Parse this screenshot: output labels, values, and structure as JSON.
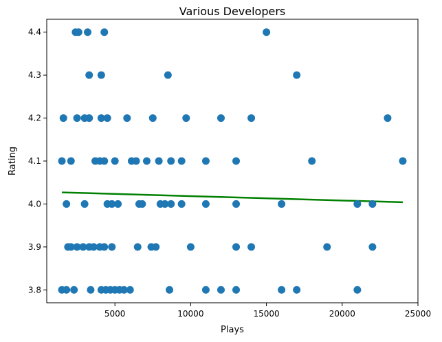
{
  "chart_data": {
    "type": "scatter",
    "title": "Various Developers",
    "xlabel": "Plays",
    "ylabel": "Rating",
    "xlim": [
      500,
      25000
    ],
    "ylim": [
      3.77,
      4.43
    ],
    "xticks": [
      5000,
      10000,
      15000,
      20000,
      25000
    ],
    "xtick_labels": [
      "5000",
      "10000",
      "15000",
      "20000",
      "25000"
    ],
    "yticks": [
      3.8,
      3.9,
      4.0,
      4.1,
      4.2,
      4.3,
      4.4
    ],
    "ytick_labels": [
      "3.8",
      "3.9",
      "4.0",
      "4.1",
      "4.2",
      "4.3",
      "4.4"
    ],
    "grid": false,
    "point_color": "#1f77b4",
    "trend_color": "#008000",
    "points": [
      {
        "x": 2400,
        "y": 4.4
      },
      {
        "x": 2600,
        "y": 4.4
      },
      {
        "x": 3200,
        "y": 4.4
      },
      {
        "x": 4300,
        "y": 4.4
      },
      {
        "x": 15000,
        "y": 4.4
      },
      {
        "x": 3300,
        "y": 4.3
      },
      {
        "x": 4100,
        "y": 4.3
      },
      {
        "x": 8500,
        "y": 4.3
      },
      {
        "x": 17000,
        "y": 4.3
      },
      {
        "x": 1600,
        "y": 4.2
      },
      {
        "x": 2500,
        "y": 4.2
      },
      {
        "x": 3000,
        "y": 4.2
      },
      {
        "x": 3300,
        "y": 4.2
      },
      {
        "x": 4100,
        "y": 4.2
      },
      {
        "x": 4500,
        "y": 4.2
      },
      {
        "x": 5800,
        "y": 4.2
      },
      {
        "x": 7500,
        "y": 4.2
      },
      {
        "x": 9700,
        "y": 4.2
      },
      {
        "x": 12000,
        "y": 4.2
      },
      {
        "x": 14000,
        "y": 4.2
      },
      {
        "x": 23000,
        "y": 4.2
      },
      {
        "x": 1500,
        "y": 4.1
      },
      {
        "x": 2100,
        "y": 4.1
      },
      {
        "x": 3700,
        "y": 4.1
      },
      {
        "x": 4000,
        "y": 4.1
      },
      {
        "x": 4300,
        "y": 4.1
      },
      {
        "x": 5000,
        "y": 4.1
      },
      {
        "x": 6100,
        "y": 4.1
      },
      {
        "x": 6400,
        "y": 4.1
      },
      {
        "x": 7100,
        "y": 4.1
      },
      {
        "x": 7900,
        "y": 4.1
      },
      {
        "x": 8700,
        "y": 4.1
      },
      {
        "x": 9400,
        "y": 4.1
      },
      {
        "x": 11000,
        "y": 4.1
      },
      {
        "x": 13000,
        "y": 4.1
      },
      {
        "x": 18000,
        "y": 4.1
      },
      {
        "x": 24000,
        "y": 4.1
      },
      {
        "x": 1800,
        "y": 4.0
      },
      {
        "x": 3000,
        "y": 4.0
      },
      {
        "x": 4500,
        "y": 4.0
      },
      {
        "x": 4800,
        "y": 4.0
      },
      {
        "x": 5200,
        "y": 4.0
      },
      {
        "x": 6600,
        "y": 4.0
      },
      {
        "x": 6800,
        "y": 4.0
      },
      {
        "x": 8000,
        "y": 4.0
      },
      {
        "x": 8300,
        "y": 4.0
      },
      {
        "x": 8700,
        "y": 4.0
      },
      {
        "x": 9400,
        "y": 4.0
      },
      {
        "x": 11000,
        "y": 4.0
      },
      {
        "x": 13000,
        "y": 4.0
      },
      {
        "x": 16000,
        "y": 4.0
      },
      {
        "x": 21000,
        "y": 4.0
      },
      {
        "x": 22000,
        "y": 4.0
      },
      {
        "x": 1900,
        "y": 3.9
      },
      {
        "x": 2100,
        "y": 3.9
      },
      {
        "x": 2500,
        "y": 3.9
      },
      {
        "x": 2900,
        "y": 3.9
      },
      {
        "x": 3300,
        "y": 3.9
      },
      {
        "x": 3600,
        "y": 3.9
      },
      {
        "x": 4000,
        "y": 3.9
      },
      {
        "x": 4300,
        "y": 3.9
      },
      {
        "x": 4800,
        "y": 3.9
      },
      {
        "x": 6500,
        "y": 3.9
      },
      {
        "x": 7400,
        "y": 3.9
      },
      {
        "x": 7700,
        "y": 3.9
      },
      {
        "x": 10000,
        "y": 3.9
      },
      {
        "x": 13000,
        "y": 3.9
      },
      {
        "x": 14000,
        "y": 3.9
      },
      {
        "x": 19000,
        "y": 3.9
      },
      {
        "x": 22000,
        "y": 3.9
      },
      {
        "x": 1500,
        "y": 3.8
      },
      {
        "x": 1800,
        "y": 3.8
      },
      {
        "x": 2300,
        "y": 3.8
      },
      {
        "x": 3400,
        "y": 3.8
      },
      {
        "x": 4100,
        "y": 3.8
      },
      {
        "x": 4400,
        "y": 3.8
      },
      {
        "x": 4700,
        "y": 3.8
      },
      {
        "x": 5000,
        "y": 3.8
      },
      {
        "x": 5300,
        "y": 3.8
      },
      {
        "x": 5600,
        "y": 3.8
      },
      {
        "x": 6000,
        "y": 3.8
      },
      {
        "x": 8600,
        "y": 3.8
      },
      {
        "x": 11000,
        "y": 3.8
      },
      {
        "x": 12000,
        "y": 3.8
      },
      {
        "x": 13000,
        "y": 3.8
      },
      {
        "x": 16000,
        "y": 3.8
      },
      {
        "x": 17000,
        "y": 3.8
      },
      {
        "x": 21000,
        "y": 3.8
      }
    ],
    "trend_line": {
      "x": [
        1500,
        24000
      ],
      "y": [
        4.027,
        4.004
      ]
    }
  }
}
